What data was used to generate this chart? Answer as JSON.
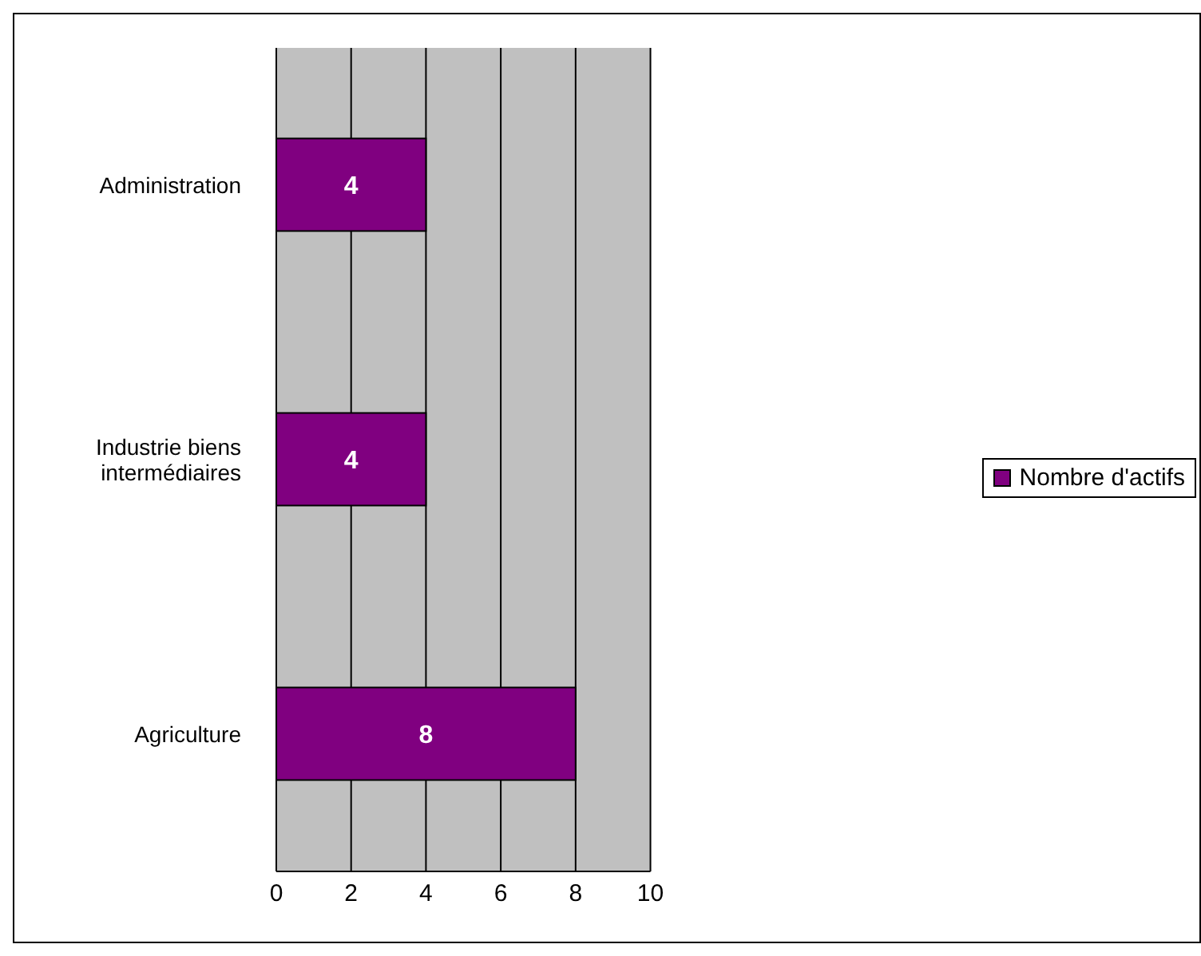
{
  "chart_data": {
    "type": "bar",
    "orientation": "horizontal",
    "categories": [
      "Administration",
      "Industrie biens intermédiaires",
      "Agriculture"
    ],
    "series": [
      {
        "name": "Nombre d'actifs",
        "color": "#800080",
        "values": [
          4,
          4,
          8
        ]
      }
    ],
    "xlim": [
      0,
      10
    ],
    "xticks": [
      0,
      2,
      4,
      6,
      8,
      10
    ],
    "grid": "x",
    "legend": "right",
    "data_labels": true
  }
}
